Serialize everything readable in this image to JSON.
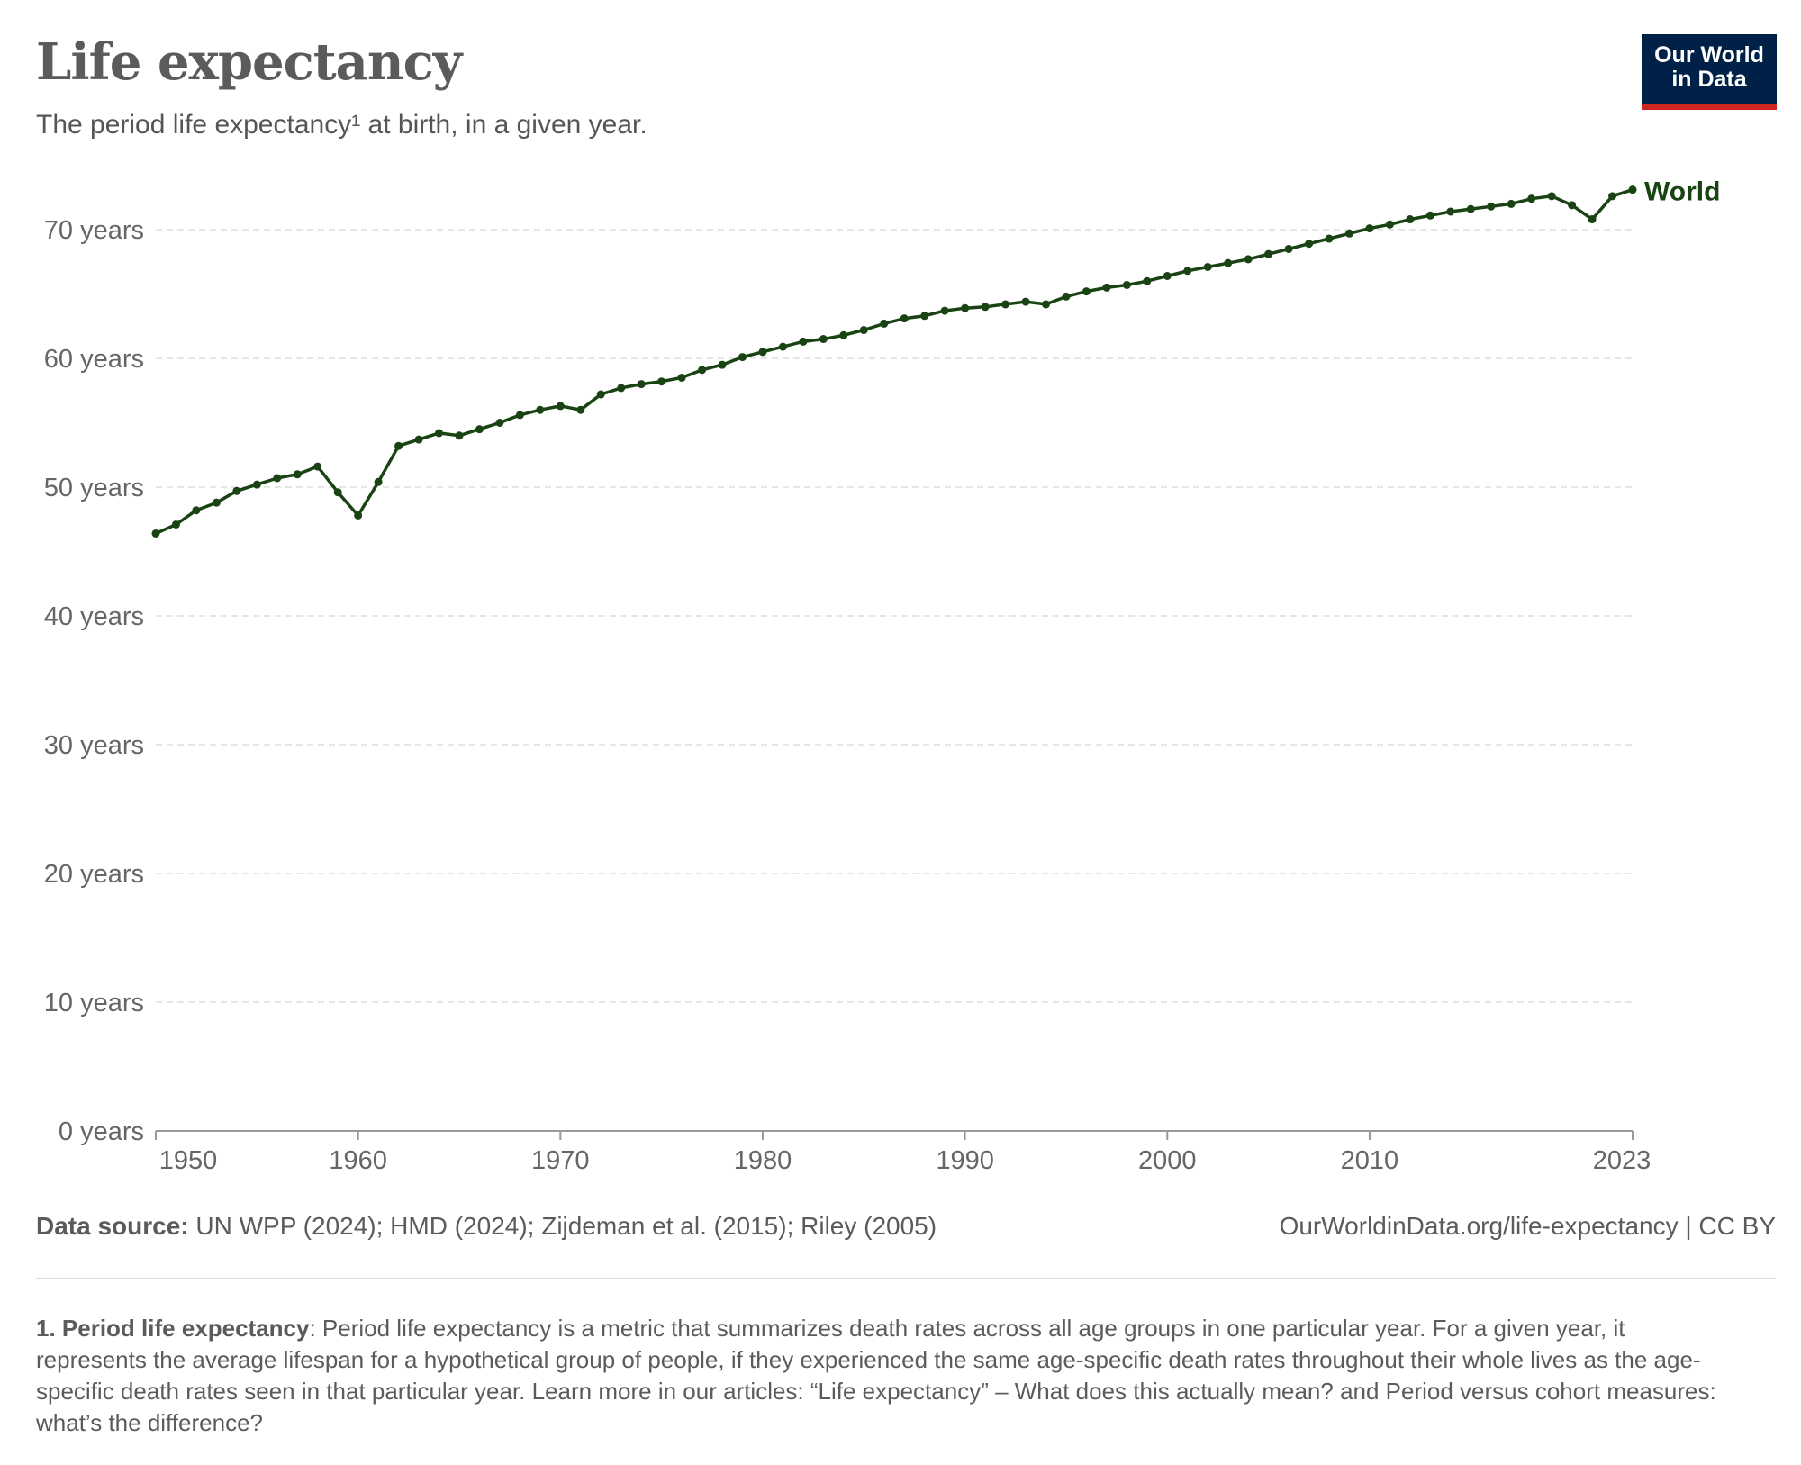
{
  "header": {
    "title": "Life expectancy",
    "subtitle": "The period life expectancy¹ at birth, in a given year.",
    "logo_line1": "Our World",
    "logo_line2": "in Data"
  },
  "chart_data": {
    "type": "line",
    "title": "Life expectancy",
    "xlabel": "",
    "ylabel": "",
    "xlim": [
      1950,
      2023
    ],
    "ylim": [
      0,
      75
    ],
    "grid": "horizontal dashed",
    "y_ticks": [
      {
        "value": 0,
        "label": "0 years"
      },
      {
        "value": 10,
        "label": "10 years"
      },
      {
        "value": 20,
        "label": "20 years"
      },
      {
        "value": 30,
        "label": "30 years"
      },
      {
        "value": 40,
        "label": "40 years"
      },
      {
        "value": 50,
        "label": "50 years"
      },
      {
        "value": 60,
        "label": "60 years"
      },
      {
        "value": 70,
        "label": "70 years"
      }
    ],
    "x_ticks": [
      {
        "value": 1950,
        "label": "1950"
      },
      {
        "value": 1960,
        "label": "1960"
      },
      {
        "value": 1970,
        "label": "1970"
      },
      {
        "value": 1980,
        "label": "1980"
      },
      {
        "value": 1990,
        "label": "1990"
      },
      {
        "value": 2000,
        "label": "2000"
      },
      {
        "value": 2010,
        "label": "2010"
      },
      {
        "value": 2023,
        "label": "2023"
      }
    ],
    "x": [
      1950,
      1951,
      1952,
      1953,
      1954,
      1955,
      1956,
      1957,
      1958,
      1959,
      1960,
      1961,
      1962,
      1963,
      1964,
      1965,
      1966,
      1967,
      1968,
      1969,
      1970,
      1971,
      1972,
      1973,
      1974,
      1975,
      1976,
      1977,
      1978,
      1979,
      1980,
      1981,
      1982,
      1983,
      1984,
      1985,
      1986,
      1987,
      1988,
      1989,
      1990,
      1991,
      1992,
      1993,
      1994,
      1995,
      1996,
      1997,
      1998,
      1999,
      2000,
      2001,
      2002,
      2003,
      2004,
      2005,
      2006,
      2007,
      2008,
      2009,
      2010,
      2011,
      2012,
      2013,
      2014,
      2015,
      2016,
      2017,
      2018,
      2019,
      2020,
      2021,
      2022,
      2023
    ],
    "series": [
      {
        "name": "World",
        "color": "#1a4314",
        "values": [
          46.4,
          47.1,
          48.2,
          48.8,
          49.7,
          50.2,
          50.7,
          51.0,
          51.6,
          49.6,
          47.8,
          50.4,
          53.2,
          53.7,
          54.2,
          54.0,
          54.5,
          55.0,
          55.6,
          56.0,
          56.3,
          56.0,
          57.2,
          57.7,
          58.0,
          58.2,
          58.5,
          59.1,
          59.5,
          60.1,
          60.5,
          60.9,
          61.3,
          61.5,
          61.8,
          62.2,
          62.7,
          63.1,
          63.3,
          63.7,
          63.9,
          64.0,
          64.2,
          64.4,
          64.2,
          64.8,
          65.2,
          65.5,
          65.7,
          66.0,
          66.4,
          66.8,
          67.1,
          67.4,
          67.7,
          68.1,
          68.5,
          68.9,
          69.3,
          69.7,
          70.1,
          70.4,
          70.8,
          71.1,
          71.4,
          71.6,
          71.8,
          72.0,
          72.4,
          72.6,
          71.9,
          70.8,
          72.6,
          73.1
        ]
      }
    ]
  },
  "footer": {
    "source_label": "Data source:",
    "source_text": " UN WPP (2024); HMD (2024); Zijdeman et al. (2015); Riley (2005)",
    "url": "OurWorldinData.org/life-expectancy | CC BY",
    "note_label": "1. Period life expectancy",
    "note_text": ": Period life expectancy is a metric that summarizes death rates across all age groups in one particular year. For a given year, it represents the average lifespan for a hypothetical group of people, if they experienced the same age-specific death rates throughout their whole lives as the age-specific death rates seen in that particular year. Learn more in our articles: “Life expectancy” – What does this actually mean? and Period versus cohort measures: what’s the difference?"
  },
  "colors": {
    "series": "#1a4314",
    "grid": "#dddddd",
    "axis": "#999999",
    "text": "#5b5b5b",
    "logo_bg": "#002147",
    "logo_accent": "#ce261e"
  }
}
